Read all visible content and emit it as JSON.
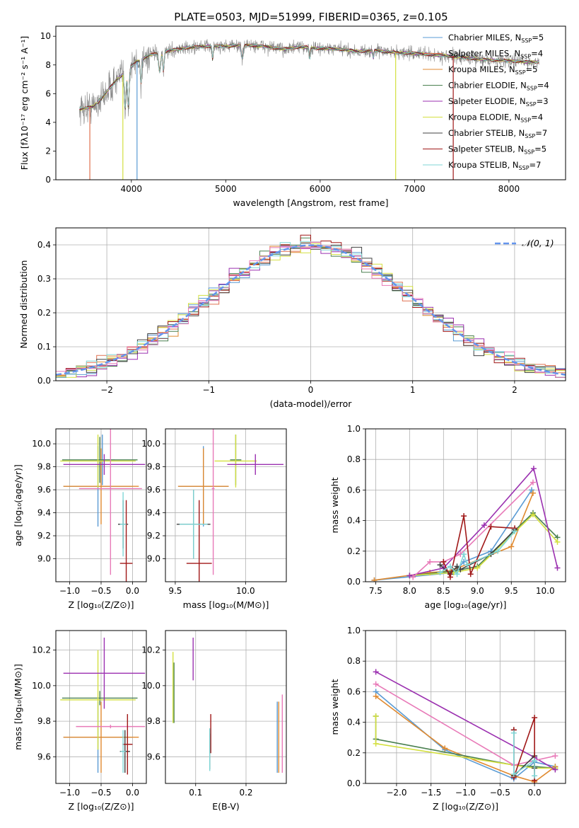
{
  "figure_title": "PLATE=0503, MJD=51999, FIBERID=0365, z=0.105",
  "chart_data": [
    {
      "id": "spectrum",
      "type": "line",
      "title": "PLATE=0503, MJD=51999, FIBERID=0365, z=0.105",
      "xlabel": "wavelength [Angstrom, rest frame]",
      "ylabel": "Flux [fλ10⁻¹⁷ erg cm⁻² s⁻¹ A⁻¹]",
      "xlim": [
        3200,
        8600
      ],
      "ylim": [
        0,
        10.7
      ],
      "xticks": [
        4000,
        5000,
        6000,
        7000,
        8000
      ],
      "yticks": [
        0,
        2,
        4,
        6,
        8,
        10
      ],
      "legend_position": "upper-right",
      "continuum_knots": {
        "x": [
          3440,
          3600,
          3700,
          3760,
          3850,
          3950,
          4050,
          4200,
          4400,
          4600,
          4800,
          5000,
          5200,
          5400,
          5600,
          5800,
          6000,
          6200,
          6400,
          6600,
          6800,
          7000,
          7200,
          7400,
          7600,
          7800,
          8000,
          8200,
          8300
        ],
        "y": [
          4.9,
          5.1,
          5.8,
          6.3,
          7.0,
          7.6,
          8.2,
          8.7,
          9.0,
          9.2,
          9.3,
          9.3,
          9.4,
          9.3,
          9.1,
          9.25,
          9.15,
          9.1,
          8.95,
          9.0,
          8.85,
          8.8,
          8.7,
          8.6,
          8.45,
          8.35,
          8.3,
          8.2,
          8.2
        ]
      },
      "series": [
        {
          "name": "Chabrier MILES, N_SSP=5",
          "label_main": "Chabrier MILES, N",
          "label_sub": "SSP",
          "label_end": "=5",
          "color": "#5a9bd4"
        },
        {
          "name": "Salpeter MILES, N_SSP=4",
          "label_main": "Salpeter MILES, N",
          "label_sub": "SSP",
          "label_end": "=4",
          "color": "#e07050"
        },
        {
          "name": "Kroupa MILES, N_SSP=5",
          "label_main": "Kroupa MILES, N",
          "label_sub": "SSP",
          "label_end": "=5",
          "color": "#e08a30"
        },
        {
          "name": "Chabrier ELODIE, N_SSP=4",
          "label_main": "Chabrier ELODIE, N",
          "label_sub": "SSP",
          "label_end": "=4",
          "color": "#4a8050"
        },
        {
          "name": "Salpeter ELODIE, N_SSP=3",
          "label_main": "Salpeter ELODIE, N",
          "label_sub": "SSP",
          "label_end": "=3",
          "color": "#9b30b0"
        },
        {
          "name": "Kroupa ELODIE, N_SSP=4",
          "label_main": "Kroupa ELODIE, N",
          "label_sub": "SSP",
          "label_end": "=4",
          "color": "#d4e040"
        },
        {
          "name": "Chabrier STELIB, N_SSP=7",
          "label_main": "Chabrier STELIB, N",
          "label_sub": "SSP",
          "label_end": "=7",
          "color": "#404040"
        },
        {
          "name": "Salpeter STELIB, N_SSP=5",
          "label_main": "Salpeter STELIB, N",
          "label_sub": "SSP",
          "label_end": "=5",
          "color": "#a01818"
        },
        {
          "name": "Kroupa STELIB, N_SSP=7",
          "label_main": "Kroupa STELIB, N",
          "label_sub": "SSP",
          "label_end": "=7",
          "color": "#7fd6d6"
        }
      ]
    },
    {
      "id": "residuals",
      "type": "histogram",
      "xlabel": "(data-model)/error",
      "ylabel": "Normed distribution",
      "xlim": [
        -2.5,
        2.5
      ],
      "ylim": [
        0,
        0.45
      ],
      "xticks": [
        -2,
        -1,
        0,
        1,
        2
      ],
      "yticks": [
        0.0,
        0.1,
        0.2,
        0.3,
        0.4
      ],
      "legend_position": "upper-right",
      "reference_label": "𝒩(0, 1)",
      "reference_color": "#6495ed",
      "bin_width": 0.1,
      "series_colors": [
        "#5a9bd4",
        "#e07050",
        "#e08a30",
        "#4a8050",
        "#9b30b0",
        "#d4e040",
        "#404040",
        "#a01818",
        "#7fd6d6",
        "#e87ab8"
      ]
    },
    {
      "id": "age_vs_Z",
      "type": "errorbar",
      "xlabel": "Z [log₁₀(Z/Z⊙)]",
      "ylabel": "age  [log₁₀(age/yr)]",
      "xlim": [
        -1.22,
        0.22
      ],
      "ylim": [
        8.8,
        10.13
      ],
      "xticks": [
        -1.0,
        -0.5,
        0.0
      ],
      "yticks": [
        9.0,
        9.2,
        9.4,
        9.6,
        9.8,
        10.0
      ],
      "points": [
        {
          "x": -0.55,
          "xerr": 0.55,
          "y": 9.63,
          "yerr": 0.35,
          "color": "#5a9bd4"
        },
        {
          "x": -0.5,
          "xerr": 0.6,
          "y": 9.63,
          "yerr": 0.33,
          "color": "#e08a30"
        },
        {
          "x": -0.48,
          "xerr": 0.2,
          "y": 9.86,
          "yerr": 0.22,
          "color": "#5a9bd4"
        },
        {
          "x": -0.52,
          "xerr": 0.6,
          "y": 9.86,
          "yerr": 0.2,
          "color": "#4a8050"
        },
        {
          "x": -0.55,
          "xerr": 0.6,
          "y": 9.85,
          "yerr": 0.23,
          "color": "#d4e040"
        },
        {
          "x": -0.45,
          "xerr": 0.65,
          "y": 9.82,
          "yerr": 0.09,
          "color": "#9b30b0"
        },
        {
          "x": -0.35,
          "xerr": 0.5,
          "y": 9.61,
          "yerr": 0.75,
          "color": "#e87ab8"
        },
        {
          "x": -0.15,
          "xerr": 0.08,
          "y": 9.3,
          "yerr": 0.21,
          "color": "#404040"
        },
        {
          "x": -0.1,
          "xerr": 0.1,
          "y": 8.96,
          "yerr": 0.55,
          "color": "#a01818"
        },
        {
          "x": -0.15,
          "xerr": 0.05,
          "y": 9.3,
          "yerr": 0.28,
          "color": "#7fd6d6"
        }
      ]
    },
    {
      "id": "age_vs_mass",
      "type": "errorbar",
      "xlabel": "mass [log₁₀(M/M⊙)]",
      "ylabel": "",
      "xlim": [
        9.43,
        10.29
      ],
      "ylim": [
        8.8,
        10.13
      ],
      "xticks": [
        9.5,
        10.0
      ],
      "yticks": [
        9.0,
        9.2,
        9.4,
        9.6,
        9.8,
        10.0
      ],
      "points": [
        {
          "x": 9.7,
          "xerr": 0.18,
          "y": 9.63,
          "yerr": 0.35,
          "color": "#5a9bd4"
        },
        {
          "x": 9.7,
          "xerr": 0.18,
          "y": 9.63,
          "yerr": 0.33,
          "color": "#e08a30"
        },
        {
          "x": 9.93,
          "xerr": 0.04,
          "y": 9.86,
          "yerr": 0.22,
          "color": "#4a8050"
        },
        {
          "x": 9.93,
          "xerr": 0.15,
          "y": 9.85,
          "yerr": 0.23,
          "color": "#d4e040"
        },
        {
          "x": 10.07,
          "xerr": 0.2,
          "y": 9.82,
          "yerr": 0.09,
          "color": "#9b30b0"
        },
        {
          "x": 9.77,
          "xerr": 0.01,
          "y": 9.61,
          "yerr": 0.75,
          "color": "#e87ab8"
        },
        {
          "x": 9.63,
          "xerr": 0.12,
          "y": 9.3,
          "yerr": 0.3,
          "color": "#404040"
        },
        {
          "x": 9.67,
          "xerr": 0.09,
          "y": 8.96,
          "yerr": 0.55,
          "color": "#a01818"
        },
        {
          "x": 9.63,
          "xerr": 0.1,
          "y": 9.3,
          "yerr": 0.3,
          "color": "#7fd6d6"
        }
      ]
    },
    {
      "id": "weight_vs_age",
      "type": "line",
      "xlabel": "age  [log₁₀(age/yr)]",
      "ylabel": "mass weight",
      "xlim": [
        7.35,
        10.3
      ],
      "ylim": [
        0,
        1.0
      ],
      "xticks": [
        7.5,
        8.0,
        8.5,
        9.0,
        9.5,
        10.0
      ],
      "yticks": [
        0.0,
        0.2,
        0.4,
        0.6,
        0.8,
        1.0
      ],
      "series": [
        {
          "color": "#5a9bd4",
          "x": [
            7.48,
            8.65,
            8.8,
            9.2,
            9.8
          ],
          "y": [
            0.01,
            0.06,
            0.13,
            0.2,
            0.6
          ]
        },
        {
          "color": "#e08a30",
          "x": [
            7.48,
            8.3,
            8.6,
            9.5,
            9.82
          ],
          "y": [
            0.01,
            0.06,
            0.07,
            0.23,
            0.58
          ]
        },
        {
          "color": "#4a8050",
          "x": [
            8.0,
            8.65,
            9.0,
            9.82,
            10.18
          ],
          "y": [
            0.04,
            0.07,
            0.1,
            0.45,
            0.29
          ]
        },
        {
          "color": "#d4e040",
          "x": [
            8.0,
            8.65,
            9.0,
            9.82,
            10.18
          ],
          "y": [
            0.04,
            0.06,
            0.09,
            0.44,
            0.26
          ]
        },
        {
          "color": "#9b30b0",
          "x": [
            8.0,
            8.5,
            9.1,
            9.83,
            10.18
          ],
          "y": [
            0.04,
            0.09,
            0.37,
            0.74,
            0.09
          ]
        },
        {
          "color": "#e87ab8",
          "x": [
            8.05,
            8.3,
            8.5,
            8.75,
            9.82
          ],
          "y": [
            0.03,
            0.13,
            0.13,
            0.18,
            0.65
          ]
        },
        {
          "color": "#404040",
          "x": [
            8.45,
            8.6,
            8.7,
            8.75,
            9.2,
            9.55
          ],
          "y": [
            0.11,
            0.05,
            0.1,
            0.08,
            0.18,
            0.34
          ]
        },
        {
          "color": "#a01818",
          "x": [
            8.5,
            8.6,
            8.8,
            8.9,
            9.2,
            9.55
          ],
          "y": [
            0.13,
            0.03,
            0.43,
            0.05,
            0.36,
            0.35
          ]
        },
        {
          "color": "#7fd6d6",
          "x": [
            8.45,
            8.6,
            8.7,
            8.8,
            8.85,
            9.3,
            9.55
          ],
          "y": [
            0.06,
            0.1,
            0.05,
            0.18,
            0.11,
            0.2,
            0.33
          ]
        }
      ]
    },
    {
      "id": "mass_vs_Z",
      "type": "errorbar",
      "xlabel": "Z [log₁₀(Z/Z⊙)]",
      "ylabel": "mass [log₁₀(M/M⊙)]",
      "xlim": [
        -1.22,
        0.22
      ],
      "ylim": [
        9.45,
        10.31
      ],
      "xticks": [
        -1.0,
        -0.5,
        0.0
      ],
      "yticks": [
        9.6,
        9.8,
        10.0,
        10.2
      ],
      "points": [
        {
          "x": -0.55,
          "xerr": 0.55,
          "y": 9.71,
          "yerr": 0.2,
          "color": "#5a9bd4"
        },
        {
          "x": -0.5,
          "xerr": 0.6,
          "y": 9.71,
          "yerr": 0.2,
          "color": "#e08a30"
        },
        {
          "x": -0.52,
          "xerr": 0.6,
          "y": 9.93,
          "yerr": 0.04,
          "color": "#4a8050"
        },
        {
          "x": -0.55,
          "xerr": 0.6,
          "y": 9.92,
          "yerr": 0.28,
          "color": "#d4e040"
        },
        {
          "x": -0.45,
          "xerr": 0.65,
          "y": 10.07,
          "yerr": 0.2,
          "color": "#9b30b0"
        },
        {
          "x": -0.35,
          "xerr": 0.55,
          "y": 9.77,
          "yerr": 0.01,
          "color": "#e87ab8"
        },
        {
          "x": -0.12,
          "xerr": 0.08,
          "y": 9.63,
          "yerr": 0.12,
          "color": "#404040"
        },
        {
          "x": -0.08,
          "xerr": 0.08,
          "y": 9.67,
          "yerr": 0.17,
          "color": "#a01818"
        },
        {
          "x": -0.15,
          "xerr": 0.04,
          "y": 9.63,
          "yerr": 0.12,
          "color": "#7fd6d6"
        }
      ]
    },
    {
      "id": "mass_vs_ebv",
      "type": "errorbar",
      "xlabel": "E(B-V)",
      "ylabel": "",
      "xlim": [
        0.04,
        0.28
      ],
      "ylim": [
        9.45,
        10.31
      ],
      "xticks": [
        0.1,
        0.2
      ],
      "yticks": [
        9.6,
        9.8,
        10.0,
        10.2
      ],
      "points": [
        {
          "x": 0.262,
          "xerr": 0,
          "y": 9.71,
          "yerr": 0.2,
          "color": "#5a9bd4"
        },
        {
          "x": 0.265,
          "xerr": 0,
          "y": 9.71,
          "yerr": 0.2,
          "color": "#e08a30"
        },
        {
          "x": 0.057,
          "xerr": 0,
          "y": 9.96,
          "yerr": 0.17,
          "color": "#4a8050"
        },
        {
          "x": 0.055,
          "xerr": 0,
          "y": 9.99,
          "yerr": 0.2,
          "color": "#d4e040"
        },
        {
          "x": 0.095,
          "xerr": 0,
          "y": 10.15,
          "yerr": 0.12,
          "color": "#9b30b0"
        },
        {
          "x": 0.272,
          "xerr": 0,
          "y": 9.73,
          "yerr": 0.22,
          "color": "#e87ab8"
        },
        {
          "x": 0.128,
          "xerr": 0,
          "y": 9.63,
          "yerr": 0.1,
          "color": "#404040"
        },
        {
          "x": 0.13,
          "xerr": 0,
          "y": 9.73,
          "yerr": 0.11,
          "color": "#a01818"
        },
        {
          "x": 0.128,
          "xerr": 0,
          "y": 9.64,
          "yerr": 0.12,
          "color": "#7fd6d6"
        }
      ]
    },
    {
      "id": "weight_vs_Z",
      "type": "line",
      "xlabel": "Z [log₁₀(Z/Z⊙)]",
      "ylabel": "mass weight",
      "xlim": [
        -2.45,
        0.45
      ],
      "ylim": [
        0,
        1.0
      ],
      "xticks": [
        -2.0,
        -1.5,
        -1.0,
        -0.5,
        0.0
      ],
      "yticks": [
        0.0,
        0.2,
        0.4,
        0.6,
        0.8,
        1.0
      ],
      "series": [
        {
          "color": "#5a9bd4",
          "x": [
            -2.3,
            -1.3,
            -0.3,
            0.0,
            0.3
          ],
          "y": [
            0.6,
            0.22,
            0.03,
            0.14,
            0.11
          ]
        },
        {
          "color": "#e08a30",
          "x": [
            -2.3,
            -1.3,
            -0.3,
            0.0,
            0.3
          ],
          "y": [
            0.57,
            0.23,
            0.05,
            0.01,
            0.11
          ]
        },
        {
          "color": "#4a8050",
          "x": [
            -2.3,
            -2.3,
            -0.3,
            0.0,
            0.3
          ],
          "y": [
            0.44,
            0.29,
            0.12,
            0.11,
            0.1
          ]
        },
        {
          "color": "#d4e040",
          "x": [
            -2.3,
            -2.3,
            -0.3,
            0.0,
            0.3
          ],
          "y": [
            0.44,
            0.26,
            0.12,
            0.1,
            0.1
          ]
        },
        {
          "color": "#9b30b0",
          "x": [
            -2.3,
            0.0,
            0.3
          ],
          "y": [
            0.73,
            0.17,
            0.09
          ]
        },
        {
          "color": "#e87ab8",
          "x": [
            -2.3,
            -0.3,
            0.3
          ],
          "y": [
            0.65,
            0.12,
            0.18
          ]
        },
        {
          "color": "#404040",
          "x": [
            -0.3,
            -0.3,
            0.0,
            0.0
          ],
          "y": [
            0.35,
            0.05,
            0.18,
            0.1
          ]
        },
        {
          "color": "#a01818",
          "x": [
            -0.3,
            -0.3,
            0.0,
            0.0
          ],
          "y": [
            0.35,
            0.04,
            0.43,
            0.02
          ]
        },
        {
          "color": "#7fd6d6",
          "x": [
            -0.3,
            -0.3,
            0.0,
            0.0
          ],
          "y": [
            0.33,
            0.06,
            0.15,
            0.05
          ]
        }
      ]
    }
  ]
}
